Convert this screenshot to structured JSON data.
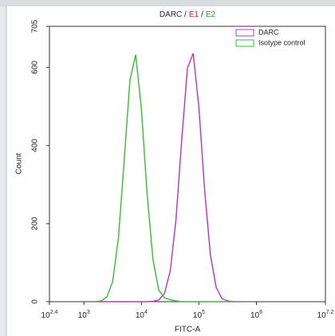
{
  "chart_data": {
    "type": "line",
    "title_parts": [
      {
        "text": "DARC /",
        "color": "#222222"
      },
      {
        "text": "E1",
        "color": "#d62020"
      },
      {
        "text": "/",
        "color": "#222222"
      },
      {
        "text": "E2",
        "color": "#20a020"
      }
    ],
    "xlabel": "FITC-A",
    "ylabel": "Count",
    "xscale": "log",
    "xlim": [
      251.19,
      15848932
    ],
    "xticks": [
      {
        "value": 251.19,
        "label": "10",
        "sup": "2.4"
      },
      {
        "value": 1000,
        "label": "10",
        "sup": "3"
      },
      {
        "value": 10000,
        "label": "10",
        "sup": "4"
      },
      {
        "value": 100000,
        "label": "10",
        "sup": "5"
      },
      {
        "value": 1000000,
        "label": "10",
        "sup": "6"
      },
      {
        "value": 15848932,
        "label": "10",
        "sup": "7.2"
      }
    ],
    "ylim": [
      0,
      705
    ],
    "yticks": [
      0,
      200,
      400,
      600,
      705
    ],
    "legend": "upper right",
    "x": [
      1585,
      1995,
      2512,
      3162,
      3981,
      5012,
      6310,
      7943,
      10000,
      12589,
      15849,
      19953,
      25119,
      31623,
      39811,
      50119,
      63096,
      79433,
      100000,
      125893,
      158489,
      199526,
      251189,
      316228,
      398107
    ],
    "series": [
      {
        "name": "DARC",
        "color": "#c030c0",
        "values": [
          0,
          0,
          0,
          0,
          0,
          0,
          0,
          0,
          0,
          0,
          1,
          4,
          21,
          78,
          209,
          413,
          598,
          636,
          497,
          285,
          120,
          37,
          8,
          2,
          0
        ]
      },
      {
        "name": "Isotype control",
        "color": "#30c030",
        "values": [
          0,
          2,
          12,
          52,
          163,
          361,
          567,
          632,
          494,
          274,
          108,
          30,
          10,
          5,
          2,
          0,
          0,
          0,
          0,
          0,
          0,
          0,
          0,
          0,
          0
        ]
      }
    ]
  }
}
